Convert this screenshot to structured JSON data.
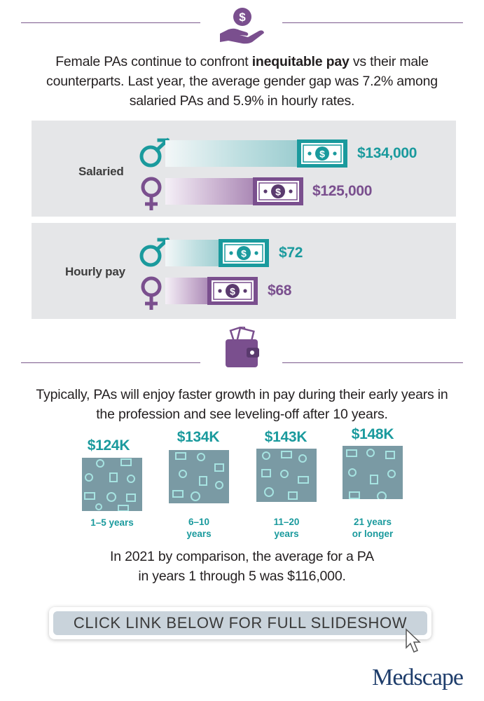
{
  "intro": {
    "before": "Female PAs continue to confront ",
    "bold": "inequitable pay",
    "after": " vs their male counterparts. Last year, the average gender gap was 7.2% among salaried PAs and 5.9% in hourly rates."
  },
  "salaried": {
    "label": "Salaried",
    "male_amount": "$134,000",
    "female_amount": "$125,000"
  },
  "hourly": {
    "label": "Hourly pay",
    "male_amount": "$72",
    "female_amount": "$68"
  },
  "growth": {
    "text": "Typically, PAs will enjoy faster growth in pay during their early years in the profession and see leveling-off after 10 years.",
    "tiers": [
      {
        "value": "$124K",
        "label_line1": "1–5 years",
        "label_line2": ""
      },
      {
        "value": "$134K",
        "label_line1": "6–10",
        "label_line2": "years"
      },
      {
        "value": "$143K",
        "label_line1": "11–20",
        "label_line2": "years"
      },
      {
        "value": "$148K",
        "label_line1": "21 years",
        "label_line2": "or longer"
      }
    ]
  },
  "comparison": {
    "line1": "In 2021 by comparison, the average for a PA",
    "line2": "in years 1 through 5 was $116,000."
  },
  "cta": {
    "label": "CLICK LINK BELOW FOR FULL SLIDESHOW"
  },
  "brand": {
    "logo": "Medscape"
  },
  "colors": {
    "male": "#1a9a9d",
    "female": "#7a4f8e",
    "panel": "#e5e6e8",
    "tile": "#7a9aa4",
    "brand": "#1e3d6b"
  },
  "icons": [
    "money-hand-icon",
    "male-symbol-icon",
    "female-symbol-icon",
    "dollar-bill-icon",
    "wallet-icon",
    "cursor-icon"
  ]
}
